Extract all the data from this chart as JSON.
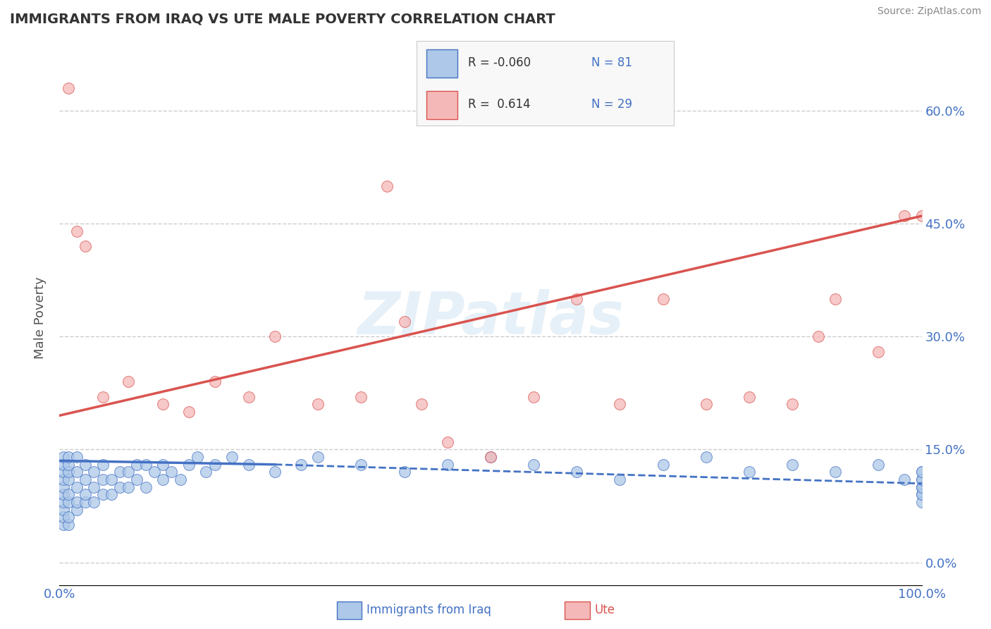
{
  "title": "IMMIGRANTS FROM IRAQ VS UTE MALE POVERTY CORRELATION CHART",
  "source_text": "Source: ZipAtlas.com",
  "ylabel": "Male Poverty",
  "legend_label_1": "Immigrants from Iraq",
  "legend_label_2": "Ute",
  "R1": -0.06,
  "N1": 81,
  "R2": 0.614,
  "N2": 29,
  "color_blue": "#adc8e8",
  "color_blue_edge": "#4472c4",
  "color_blue_line": "#4472c4",
  "color_pink": "#f5b8b8",
  "color_pink_edge": "#d9534f",
  "color_pink_line": "#d9534f",
  "background_color": "#ffffff",
  "watermark": "ZIPatlas",
  "xlim": [
    0,
    100
  ],
  "ylim": [
    -3,
    68
  ],
  "yticks": [
    0,
    15,
    30,
    45,
    60
  ],
  "xticks": [
    0,
    100
  ],
  "blue_line_x": [
    0,
    120
  ],
  "blue_line_y": [
    13.5,
    9.8
  ],
  "pink_line_x": [
    0,
    100
  ],
  "pink_line_y": [
    19.5,
    46.0
  ],
  "blue_scatter_x": [
    0.5,
    0.5,
    0.5,
    0.5,
    0.5,
    0.5,
    0.5,
    0.5,
    0.5,
    0.5,
    1,
    1,
    1,
    1,
    1,
    1,
    1,
    1,
    2,
    2,
    2,
    2,
    2,
    3,
    3,
    3,
    3,
    4,
    4,
    4,
    5,
    5,
    5,
    6,
    6,
    7,
    7,
    8,
    8,
    9,
    9,
    10,
    10,
    11,
    12,
    12,
    13,
    14,
    15,
    16,
    17,
    18,
    20,
    22,
    25,
    28,
    30,
    35,
    40,
    45,
    50,
    55,
    60,
    65,
    70,
    75,
    80,
    85,
    90,
    95,
    98,
    100,
    100,
    100,
    100,
    100,
    100,
    100,
    100,
    100,
    100,
    100
  ],
  "blue_scatter_y": [
    5,
    6,
    7,
    8,
    9,
    10,
    11,
    12,
    13,
    14,
    5,
    6,
    8,
    9,
    11,
    12,
    13,
    14,
    7,
    8,
    10,
    12,
    14,
    8,
    9,
    11,
    13,
    8,
    10,
    12,
    9,
    11,
    13,
    9,
    11,
    10,
    12,
    10,
    12,
    11,
    13,
    10,
    13,
    12,
    11,
    13,
    12,
    11,
    13,
    14,
    12,
    13,
    14,
    13,
    12,
    13,
    14,
    13,
    12,
    13,
    14,
    13,
    12,
    11,
    13,
    14,
    12,
    13,
    12,
    13,
    11,
    10,
    11,
    12,
    10,
    9,
    8,
    9,
    10,
    11,
    12
  ],
  "pink_scatter_x": [
    1,
    3,
    5,
    8,
    12,
    18,
    22,
    30,
    35,
    40,
    42,
    45,
    50,
    55,
    60,
    65,
    70,
    75,
    80,
    85,
    88,
    90,
    95,
    98,
    100,
    2,
    15,
    25,
    38
  ],
  "pink_scatter_y": [
    63,
    42,
    22,
    24,
    21,
    24,
    22,
    21,
    22,
    32,
    21,
    16,
    14,
    22,
    35,
    21,
    35,
    21,
    22,
    21,
    30,
    35,
    28,
    46,
    46,
    44,
    20,
    30,
    50
  ]
}
